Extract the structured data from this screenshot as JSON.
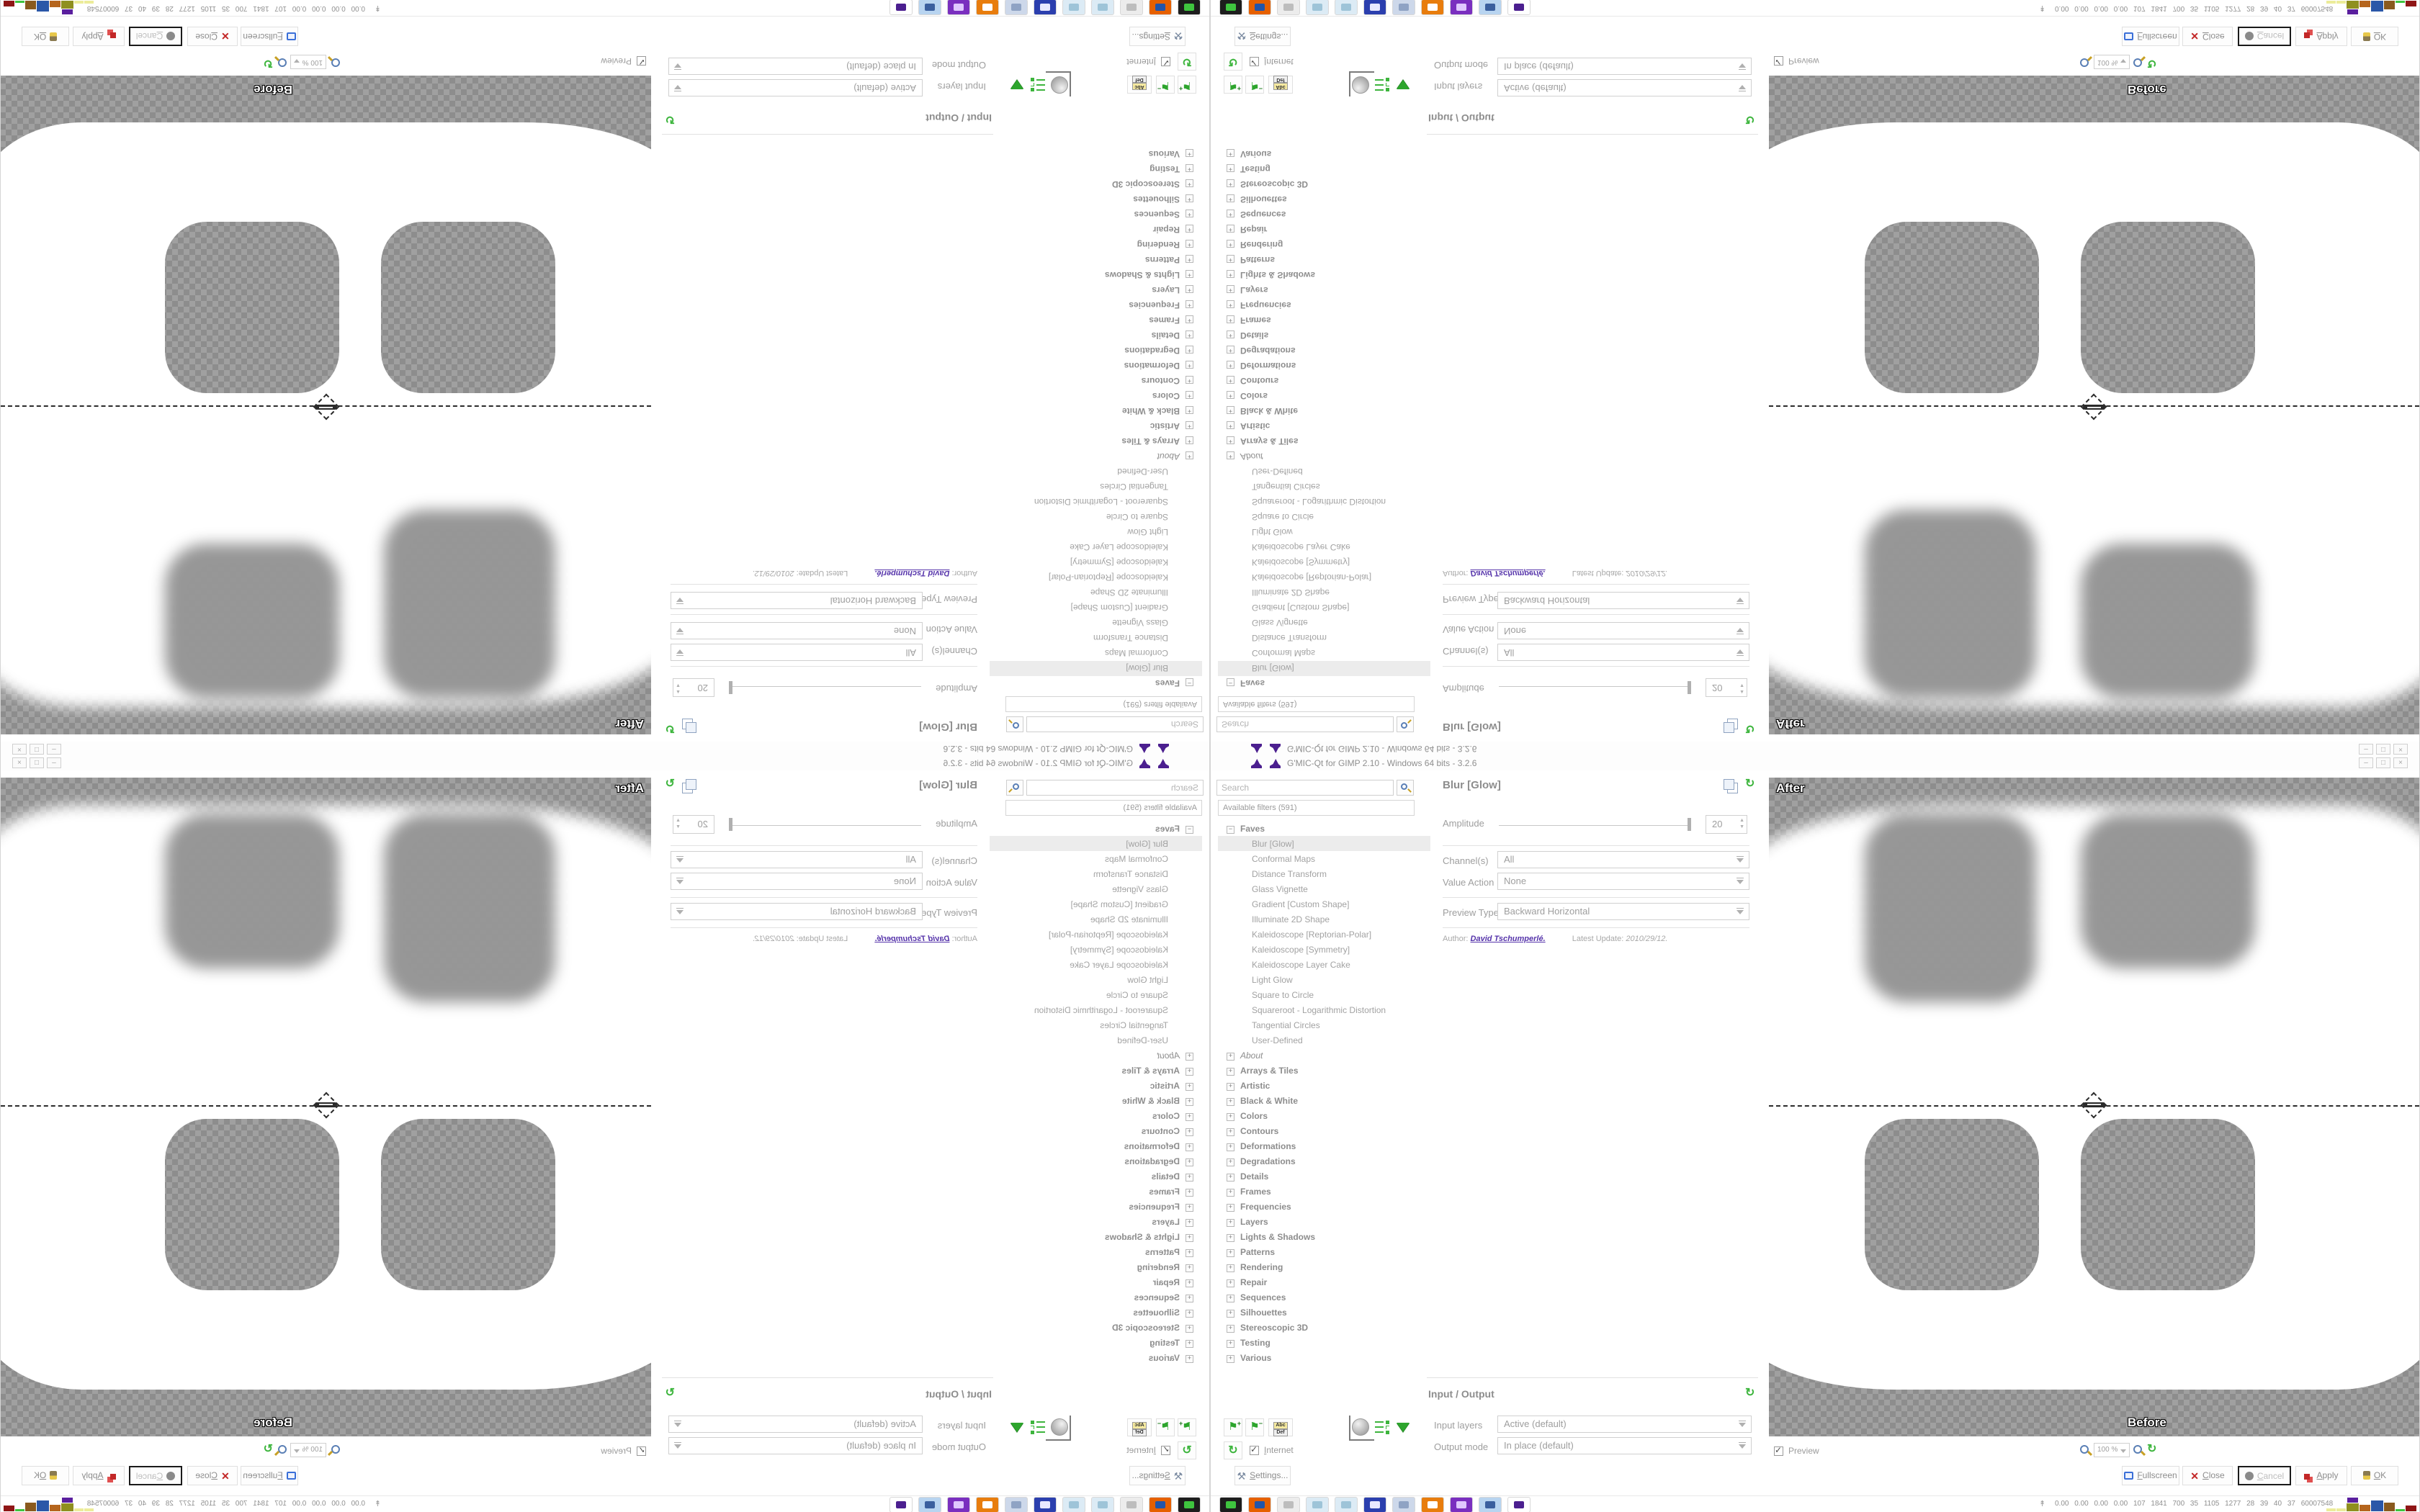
{
  "window": {
    "title": "G'MIC-Qt for GIMP 2.10 - Windows 64 bits - 3.2.6"
  },
  "titlebar_buttons": {
    "minimize": "–",
    "restore": "□",
    "close": "×"
  },
  "filters": {
    "search_placeholder": "Search",
    "header": "Available filters (591)",
    "faves_label": "Faves",
    "selected": "Blur [Glow]",
    "faves": [
      "Blur [Glow]",
      "Conformal Maps",
      "Distance Transform",
      "Glass Vignette",
      "Gradient [Custom Shape]",
      "Illuminate 2D Shape",
      "Kaleidoscope [Reptorian-Polar]",
      "Kaleidoscope [Symmetry]",
      "Kaleidoscope Layer Cake",
      "Light Glow",
      "Square to Circle",
      "Squareroot - Logarithmic Distortion",
      "Tangential Circles",
      "User-Defined"
    ],
    "categories": [
      "About",
      "Arrays & Tiles",
      "Artistic",
      "Black & White",
      "Colors",
      "Contours",
      "Deformations",
      "Degradations",
      "Details",
      "Frames",
      "Frequencies",
      "Layers",
      "Lights & Shadows",
      "Patterns",
      "Rendering",
      "Repair",
      "Sequences",
      "Silhouettes",
      "Stereoscopic 3D",
      "Testing",
      "Various"
    ],
    "italic_categories": [
      "About"
    ],
    "rename_top": "Abc",
    "rename_bottom": "Def",
    "internet_label": "Internet"
  },
  "params": {
    "title": "Blur [Glow]",
    "amplitude_label": "Amplitude",
    "amplitude_value": "20",
    "channels_label": "Channel(s)",
    "channels_value": "All",
    "value_action_label": "Value Action",
    "value_action_value": "None",
    "preview_type_label": "Preview Type",
    "preview_type_value": "Backward Horizontal",
    "author_prefix": "Author:",
    "author_name": "David Tschumperlé.",
    "update_label": "Latest Update:",
    "update_value": "2010/29/12."
  },
  "io": {
    "title": "Input / Output",
    "input_label": "Input layers",
    "input_value": "Active (default)",
    "output_label": "Output mode",
    "output_value": "In place (default)"
  },
  "preview": {
    "after_label": "After",
    "before_label": "Before",
    "checkbox_label": "Preview",
    "zoom_value": "100 %"
  },
  "footer": {
    "settings": "Settings...",
    "fullscreen": "Fullscreen",
    "close": "Close",
    "cancel": "Cancel",
    "apply": "Apply",
    "ok": "OK"
  },
  "taskbar": {
    "stats": "0.00 0.00 0.00 0.00  107 1841 700  35  1105 1277  28  39  40  37  60007548",
    "icons": [
      {
        "name": "terminal-icon",
        "bg": "#1d1d1d",
        "fg": "#3fc43f"
      },
      {
        "name": "firefox-icon",
        "bg": "#e66000",
        "fg": "#2255aa"
      },
      {
        "name": "hand-icon",
        "bg": "#ececec",
        "fg": "#bdbdbd"
      },
      {
        "name": "notepad-icon",
        "bg": "#dcebf5",
        "fg": "#9ec4d8"
      },
      {
        "name": "notepad2-icon",
        "bg": "#dcebf5",
        "fg": "#9ec4d8"
      },
      {
        "name": "floppy-icon",
        "bg": "#2b3fae",
        "fg": "#e8e8ff"
      },
      {
        "name": "scroll-icon",
        "bg": "#cdd8ea",
        "fg": "#8fa3c4"
      },
      {
        "name": "blender-icon",
        "bg": "#e87d0d",
        "fg": "#ffffff"
      },
      {
        "name": "monster-icon",
        "bg": "#7a2fbf",
        "fg": "#e0c8ff"
      },
      {
        "name": "calculator-icon",
        "bg": "#b8d4f0",
        "fg": "#3a5f9e"
      },
      {
        "name": "wizard-hat-icon",
        "bg": "#ffffff",
        "fg": "#4b1f8f"
      }
    ],
    "blocks": [
      {
        "name": "block-yellow-1",
        "color": "#ecec9a",
        "w": 13,
        "h": 4
      },
      {
        "name": "block-yellow-2",
        "color": "#ecec9a",
        "w": 13,
        "h": 4
      },
      {
        "name": "block-olive",
        "color": "#8f8f1f",
        "w": 17,
        "h": 11,
        "cap": "#5a1f9e",
        "caph": 7
      },
      {
        "name": "block-orange",
        "color": "#b5651d",
        "w": 15,
        "h": 9
      },
      {
        "name": "block-blue",
        "color": "#2a57a8",
        "w": 17,
        "h": 15
      },
      {
        "name": "block-brown",
        "color": "#8a5a1e",
        "w": 15,
        "h": 12
      },
      {
        "name": "block-green",
        "color": "#3fc43f",
        "w": 13,
        "h": 3
      },
      {
        "name": "block-darkred",
        "color": "#8f1616",
        "w": 15,
        "h": 8
      }
    ]
  },
  "colors": {
    "accent_green": "#3db53d",
    "link_purple": "#5533aa",
    "close_red": "#c22727",
    "fullscreen_blue": "#3a6fd8",
    "selected_row_bg": "#ececec",
    "checker_light": "#a0a0a0",
    "checker_dark": "#8d8d8d"
  }
}
